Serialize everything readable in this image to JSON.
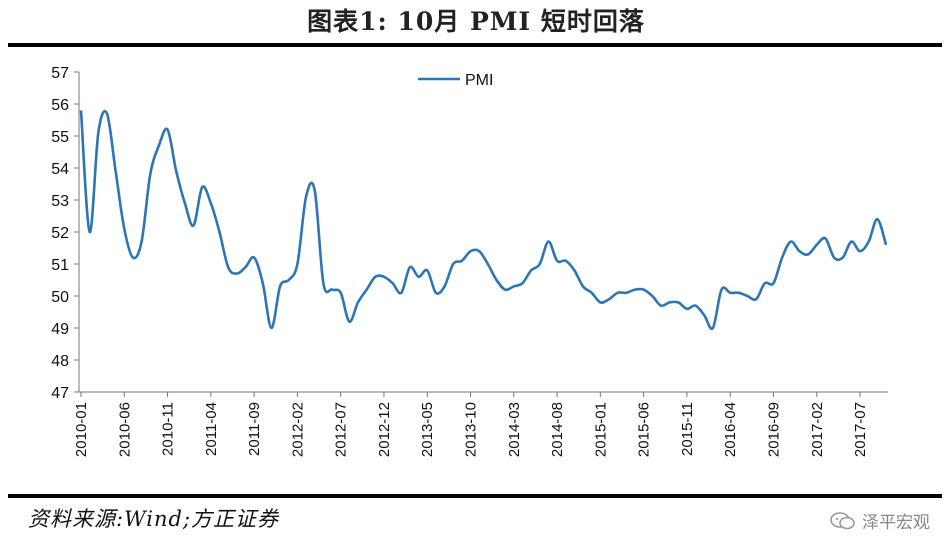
{
  "header": {
    "title": "图表1:   10月 PMI 短时回落"
  },
  "footer": {
    "source": "资料来源:Wind;方正证券",
    "watermark": "泽平宏观"
  },
  "chart_data": {
    "type": "line",
    "title": "",
    "xlabel": "",
    "ylabel": "",
    "ylim": [
      47,
      57
    ],
    "yticks": [
      47,
      48,
      49,
      50,
      51,
      52,
      53,
      54,
      55,
      56,
      57
    ],
    "xticks": [
      "2010-01",
      "2010-06",
      "2010-11",
      "2011-04",
      "2011-09",
      "2012-02",
      "2012-07",
      "2012-12",
      "2013-05",
      "2013-10",
      "2014-03",
      "2014-08",
      "2015-01",
      "2015-06",
      "2015-11",
      "2016-04",
      "2016-09",
      "2017-02",
      "2017-07"
    ],
    "legend": {
      "position": "top-center"
    },
    "grid": false,
    "series": [
      {
        "name": "PMI",
        "color": "#2e75b6",
        "x": [
          "2010-01",
          "2010-02",
          "2010-03",
          "2010-04",
          "2010-05",
          "2010-06",
          "2010-07",
          "2010-08",
          "2010-09",
          "2010-10",
          "2010-11",
          "2010-12",
          "2011-01",
          "2011-02",
          "2011-03",
          "2011-04",
          "2011-05",
          "2011-06",
          "2011-07",
          "2011-08",
          "2011-09",
          "2011-10",
          "2011-11",
          "2011-12",
          "2012-01",
          "2012-02",
          "2012-03",
          "2012-04",
          "2012-05",
          "2012-06",
          "2012-07",
          "2012-08",
          "2012-09",
          "2012-10",
          "2012-11",
          "2012-12",
          "2013-01",
          "2013-02",
          "2013-03",
          "2013-04",
          "2013-05",
          "2013-06",
          "2013-07",
          "2013-08",
          "2013-09",
          "2013-10",
          "2013-11",
          "2013-12",
          "2014-01",
          "2014-02",
          "2014-03",
          "2014-04",
          "2014-05",
          "2014-06",
          "2014-07",
          "2014-08",
          "2014-09",
          "2014-10",
          "2014-11",
          "2014-12",
          "2015-01",
          "2015-02",
          "2015-03",
          "2015-04",
          "2015-05",
          "2015-06",
          "2015-07",
          "2015-08",
          "2015-09",
          "2015-10",
          "2015-11",
          "2015-12",
          "2016-01",
          "2016-02",
          "2016-03",
          "2016-04",
          "2016-05",
          "2016-06",
          "2016-07",
          "2016-08",
          "2016-09",
          "2016-10",
          "2016-11",
          "2016-12",
          "2017-01",
          "2017-02",
          "2017-03",
          "2017-04",
          "2017-05",
          "2017-06",
          "2017-07",
          "2017-08",
          "2017-09",
          "2017-10"
        ],
        "values": [
          55.8,
          52.0,
          55.1,
          55.7,
          53.9,
          52.1,
          51.2,
          51.7,
          53.8,
          54.7,
          55.2,
          53.9,
          52.9,
          52.2,
          53.4,
          52.9,
          52.0,
          50.9,
          50.7,
          50.9,
          51.2,
          50.4,
          49.0,
          50.3,
          50.5,
          51.0,
          53.1,
          53.3,
          50.4,
          50.2,
          50.1,
          49.2,
          49.8,
          50.2,
          50.6,
          50.6,
          50.4,
          50.1,
          50.9,
          50.6,
          50.8,
          50.1,
          50.3,
          51.0,
          51.1,
          51.4,
          51.4,
          51.0,
          50.5,
          50.2,
          50.3,
          50.4,
          50.8,
          51.0,
          51.7,
          51.1,
          51.1,
          50.8,
          50.3,
          50.1,
          49.8,
          49.9,
          50.1,
          50.1,
          50.2,
          50.2,
          50.0,
          49.7,
          49.8,
          49.8,
          49.6,
          49.7,
          49.4,
          49.0,
          50.2,
          50.1,
          50.1,
          50.0,
          49.9,
          50.4,
          50.4,
          51.2,
          51.7,
          51.4,
          51.3,
          51.6,
          51.8,
          51.2,
          51.2,
          51.7,
          51.4,
          51.7,
          52.4,
          51.6
        ]
      }
    ]
  }
}
